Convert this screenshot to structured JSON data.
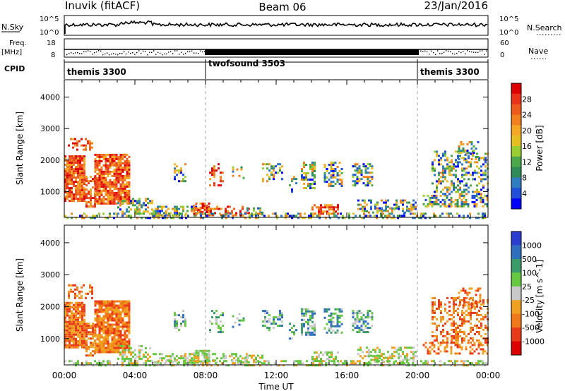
{
  "header": {
    "station": "Inuvik (fitACF)",
    "beam": "Beam 06",
    "date": "23/Jan/2016"
  },
  "panels": {
    "nsky": {
      "label": "N.Sky",
      "left_ticks": [
        "10^5",
        "10^0"
      ],
      "right_label": "N.Search",
      "right_ticks": [
        "10^5",
        "10^0"
      ]
    },
    "freq": {
      "label_line1": "Freq.",
      "label_line2": "[MHz]",
      "left_ticks": [
        "18",
        "8"
      ],
      "right_label": "Nave",
      "right_ticks": [
        "60",
        "0"
      ]
    },
    "cpid": {
      "label": "CPID",
      "modes": [
        "themis 3300",
        "twofsound 3503",
        "themis 3300"
      ],
      "mode_boundaries_hours": [
        0,
        8,
        20,
        24
      ]
    }
  },
  "chart_data": [
    {
      "type": "heatmap",
      "title": "Power",
      "ylabel": "Slant Range [km]",
      "ylim": [
        180,
        4550
      ],
      "yticks": [
        "1000",
        "2000",
        "3000",
        "4000"
      ],
      "xlim_hours": [
        0,
        24
      ],
      "colorbar": {
        "label": "Power [dB]",
        "range": [
          0,
          32
        ],
        "ticks": [
          "4",
          "8",
          "12",
          "16",
          "20",
          "24",
          "28"
        ],
        "colors": [
          "#0000ff",
          "#1f4fd8",
          "#2f7dc0",
          "#2e8b57",
          "#4aa84a",
          "#9acd32",
          "#e6c020",
          "#f5a623",
          "#f07f1e",
          "#ee5a1c",
          "#e8331a",
          "#dd0000"
        ]
      }
    },
    {
      "type": "heatmap",
      "title": "Velocity",
      "ylabel": "Slant Range [km]",
      "ylim": [
        180,
        4550
      ],
      "yticks": [
        "1000",
        "2000",
        "3000",
        "4000"
      ],
      "xlim_hours": [
        0,
        24
      ],
      "colorbar": {
        "label": "Velocity [m s^-1]",
        "ticks": [
          "1000",
          "500",
          "100",
          "25",
          "-25",
          "-100",
          "-500",
          "-1000"
        ],
        "colors": [
          "#2a3fd0",
          "#2e6fc0",
          "#3a9a6a",
          "#66c840",
          "#c8c8c8",
          "#f0a020",
          "#f07818",
          "#e83a18",
          "#dd0000"
        ]
      }
    }
  ],
  "xaxis": {
    "ticks": [
      "00:00",
      "04:00",
      "08:00",
      "12:00",
      "16:00",
      "20:00",
      "00:00"
    ],
    "label": "Time UT"
  }
}
